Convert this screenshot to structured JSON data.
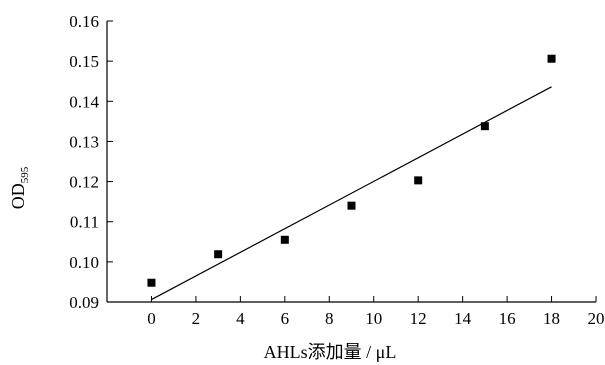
{
  "chart_data": {
    "type": "scatter",
    "title": "",
    "xlabel": "AHLs添加量 / μL",
    "ylabel": {
      "main": "OD",
      "sub": "595"
    },
    "xlim": [
      -2,
      20
    ],
    "ylim": [
      0.09,
      0.16
    ],
    "xticks": [
      0,
      2,
      4,
      6,
      8,
      10,
      12,
      14,
      16,
      18,
      20
    ],
    "yticks": [
      "0.09",
      "0.10",
      "0.11",
      "0.12",
      "0.13",
      "0.14",
      "0.15",
      "0.16"
    ],
    "grid": false,
    "legend": "none",
    "series": [
      {
        "marker": "square",
        "x": [
          0,
          3,
          6,
          9,
          12,
          15,
          18
        ],
        "y": [
          0.0948,
          0.1019,
          0.1055,
          0.114,
          0.1203,
          0.1338,
          0.1506
        ]
      }
    ],
    "fit_line": {
      "x": [
        0,
        18
      ],
      "y": [
        0.0906,
        0.1436
      ]
    }
  }
}
